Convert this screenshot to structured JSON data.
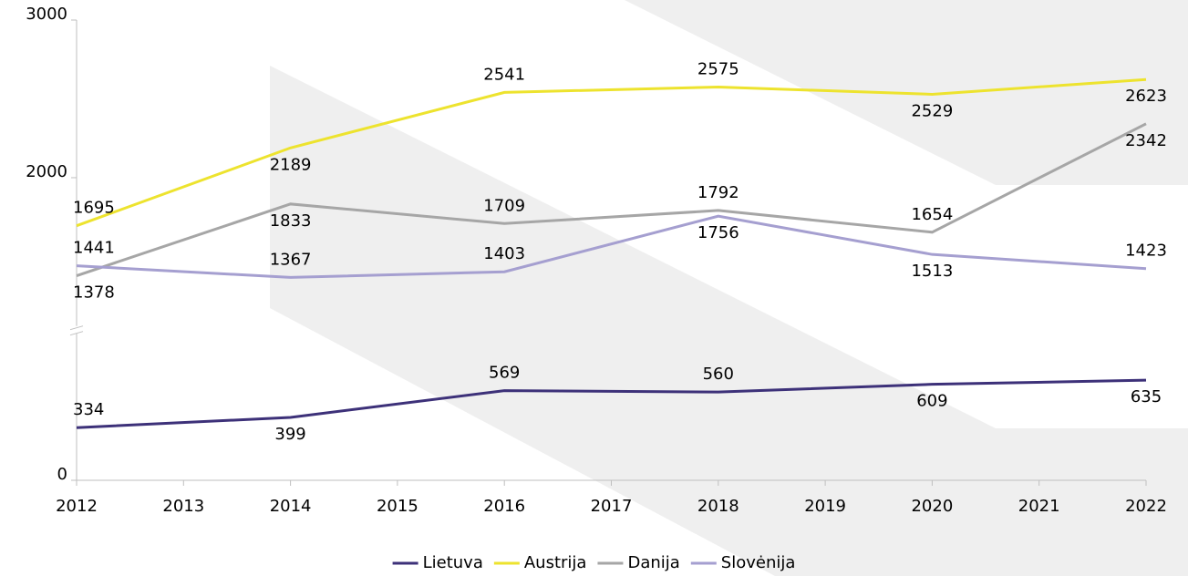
{
  "chart_data": {
    "type": "line",
    "x": [
      2012,
      2014,
      2016,
      2018,
      2020,
      2022
    ],
    "xlim": [
      2012,
      2022
    ],
    "xticks": [
      2012,
      2013,
      2014,
      2015,
      2016,
      2017,
      2018,
      2019,
      2020,
      2021,
      2022
    ],
    "ylim": [
      0,
      3000
    ],
    "yticks": [
      0,
      2000,
      3000
    ],
    "ybreak": [
      950,
      1030
    ],
    "legend": "bottom",
    "series": [
      {
        "name": "Lietuva",
        "color": "#3d3179",
        "values": [
          334,
          399,
          569,
          560,
          609,
          635
        ]
      },
      {
        "name": "Austrija",
        "color": "#ede32e",
        "values": [
          1695,
          2189,
          2541,
          2575,
          2529,
          2623
        ]
      },
      {
        "name": "Danija",
        "color": "#a6a6a6",
        "values": [
          1378,
          1833,
          1709,
          1792,
          1654,
          2342
        ]
      },
      {
        "name": "Slovėnija",
        "color": "#a59fd0",
        "values": [
          1441,
          1367,
          1403,
          1756,
          1513,
          1423
        ]
      }
    ]
  }
}
